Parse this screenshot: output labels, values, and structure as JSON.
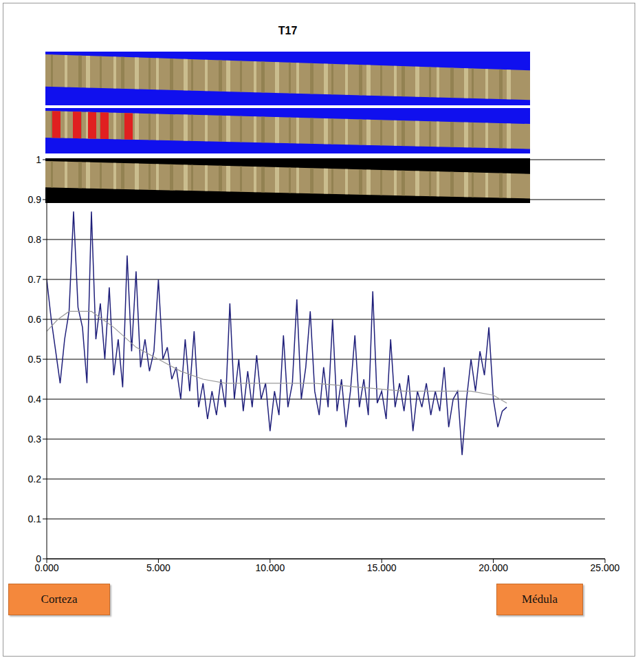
{
  "chart_data": {
    "type": "line",
    "title": "T17",
    "annotations": [
      "Corteza",
      "Médula"
    ],
    "xlim": [
      0,
      25
    ],
    "xticks": [
      {
        "value": 0,
        "label": "0.000"
      },
      {
        "value": 5,
        "label": "5.000"
      },
      {
        "value": 10,
        "label": "10.000"
      },
      {
        "value": 15,
        "label": "15.000"
      },
      {
        "value": 20,
        "label": "20.000"
      },
      {
        "value": 25,
        "label": "25.000"
      }
    ],
    "ylim": [
      0,
      1
    ],
    "yticks": [
      0,
      0.1,
      0.2,
      0.3,
      0.4,
      0.5,
      0.6,
      0.7,
      0.8,
      0.9,
      1
    ],
    "grid": true,
    "series": [
      {
        "color": "#1f1f7a",
        "line_style": "solid",
        "x": [
          0,
          0.2,
          0.4,
          0.6,
          0.8,
          1,
          1.2,
          1.4,
          1.6,
          1.8,
          2,
          2.2,
          2.4,
          2.6,
          2.8,
          3,
          3.2,
          3.4,
          3.6,
          3.8,
          4,
          4.2,
          4.4,
          4.6,
          4.8,
          5,
          5.2,
          5.4,
          5.6,
          5.8,
          6,
          6.2,
          6.4,
          6.6,
          6.8,
          7,
          7.2,
          7.4,
          7.6,
          7.8,
          8,
          8.2,
          8.4,
          8.6,
          8.8,
          9,
          9.2,
          9.4,
          9.6,
          9.8,
          10,
          10.2,
          10.4,
          10.6,
          10.8,
          11,
          11.2,
          11.4,
          11.6,
          11.8,
          12,
          12.2,
          12.4,
          12.6,
          12.8,
          13,
          13.2,
          13.4,
          13.6,
          13.8,
          14,
          14.2,
          14.4,
          14.6,
          14.8,
          15,
          15.2,
          15.4,
          15.6,
          15.8,
          16,
          16.2,
          16.4,
          16.6,
          16.8,
          17,
          17.2,
          17.4,
          17.6,
          17.8,
          18,
          18.2,
          18.4,
          18.6,
          18.8,
          19,
          19.2,
          19.4,
          19.6,
          19.8,
          20,
          20.2,
          20.4,
          20.6
        ],
        "values": [
          0.7,
          0.6,
          0.52,
          0.44,
          0.55,
          0.62,
          0.87,
          0.63,
          0.58,
          0.44,
          0.87,
          0.55,
          0.64,
          0.5,
          0.68,
          0.46,
          0.55,
          0.43,
          0.76,
          0.52,
          0.72,
          0.48,
          0.55,
          0.47,
          0.52,
          0.7,
          0.5,
          0.53,
          0.45,
          0.48,
          0.4,
          0.55,
          0.42,
          0.57,
          0.38,
          0.44,
          0.35,
          0.42,
          0.36,
          0.45,
          0.38,
          0.64,
          0.4,
          0.5,
          0.37,
          0.47,
          0.38,
          0.51,
          0.4,
          0.44,
          0.32,
          0.42,
          0.36,
          0.56,
          0.38,
          0.44,
          0.65,
          0.4,
          0.48,
          0.62,
          0.42,
          0.36,
          0.48,
          0.38,
          0.6,
          0.37,
          0.45,
          0.33,
          0.42,
          0.56,
          0.38,
          0.45,
          0.36,
          0.67,
          0.39,
          0.42,
          0.35,
          0.55,
          0.38,
          0.44,
          0.37,
          0.46,
          0.32,
          0.42,
          0.38,
          0.44,
          0.36,
          0.42,
          0.37,
          0.48,
          0.33,
          0.4,
          0.42,
          0.26,
          0.4,
          0.5,
          0.42,
          0.52,
          0.46,
          0.58,
          0.4,
          0.33,
          0.37,
          0.38
        ]
      },
      {
        "color": "#9a9a9a",
        "line_style": "solid",
        "x": [
          0,
          0.5,
          1,
          2,
          3,
          4,
          5,
          6,
          7,
          8,
          10,
          12,
          14,
          16,
          18,
          19,
          20,
          20.6
        ],
        "values": [
          0.57,
          0.6,
          0.62,
          0.62,
          0.58,
          0.53,
          0.5,
          0.47,
          0.45,
          0.44,
          0.44,
          0.44,
          0.43,
          0.42,
          0.42,
          0.42,
          0.41,
          0.39
        ]
      }
    ]
  }
}
